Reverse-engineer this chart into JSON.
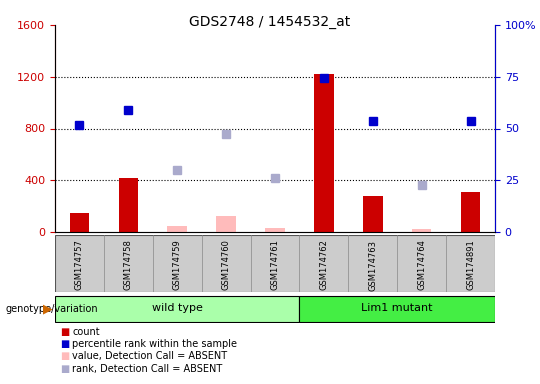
{
  "title": "GDS2748 / 1454532_at",
  "samples": [
    "GSM174757",
    "GSM174758",
    "GSM174759",
    "GSM174760",
    "GSM174761",
    "GSM174762",
    "GSM174763",
    "GSM174764",
    "GSM174891"
  ],
  "count_values": [
    150,
    420,
    50,
    120,
    30,
    1220,
    280,
    20,
    310
  ],
  "count_absent": [
    false,
    false,
    true,
    true,
    true,
    false,
    false,
    true,
    false
  ],
  "rank_values": [
    830,
    940,
    480,
    760,
    420,
    1190,
    860,
    360,
    860
  ],
  "rank_absent": [
    false,
    false,
    true,
    true,
    true,
    false,
    false,
    true,
    false
  ],
  "wild_type_indices": [
    0,
    1,
    2,
    3,
    4
  ],
  "lim1_mutant_indices": [
    5,
    6,
    7,
    8
  ],
  "ylim_left": [
    0,
    1600
  ],
  "ylim_right": [
    0,
    100
  ],
  "yticks_left": [
    0,
    400,
    800,
    1200,
    1600
  ],
  "ytick_labels_left": [
    "0",
    "400",
    "800",
    "1200",
    "1600"
  ],
  "yticks_right": [
    0,
    25,
    50,
    75,
    100
  ],
  "ytick_labels_right": [
    "0",
    "25",
    "50",
    "75",
    "100%"
  ],
  "color_count": "#cc0000",
  "color_count_absent": "#ffbbbb",
  "color_rank": "#0000cc",
  "color_rank_absent": "#aaaacc",
  "color_wild_type_bg": "#aaffaa",
  "color_lim1_bg": "#44ee44",
  "color_sample_bg": "#cccccc",
  "left_axis_color": "#cc0000",
  "right_axis_color": "#0000cc",
  "grid_color": "#000000",
  "legend_items": [
    {
      "label": "count",
      "color": "#cc0000"
    },
    {
      "label": "percentile rank within the sample",
      "color": "#0000cc"
    },
    {
      "label": "value, Detection Call = ABSENT",
      "color": "#ffbbbb"
    },
    {
      "label": "rank, Detection Call = ABSENT",
      "color": "#aaaacc"
    }
  ]
}
